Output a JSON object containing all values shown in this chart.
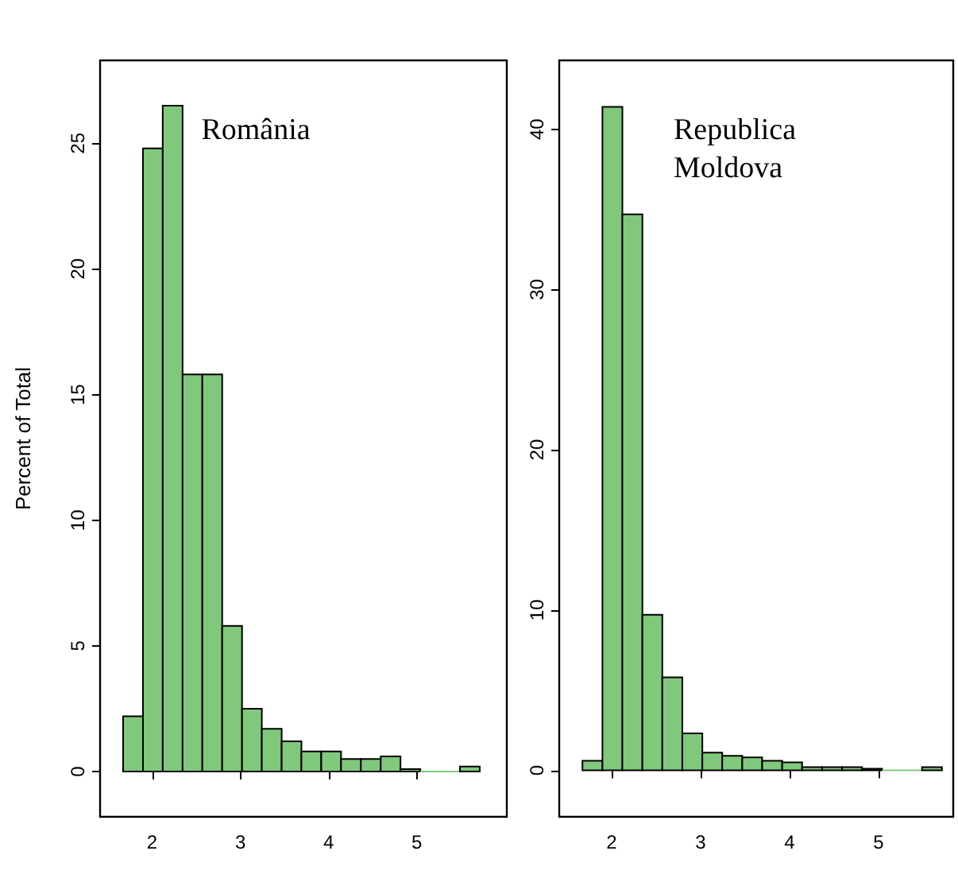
{
  "chart_data": [
    {
      "type": "histogram",
      "ylabel": "Percent of Total",
      "annotations": [
        "România"
      ],
      "color": "#80c97c",
      "bins": [
        1.671,
        1.896,
        2.12,
        2.345,
        2.569,
        2.794,
        3.019,
        3.243,
        3.468,
        3.692,
        3.917,
        4.141,
        4.366,
        4.591,
        4.815,
        5.04,
        5.264,
        5.489,
        5.713
      ],
      "values": [
        2.2,
        24.8,
        26.5,
        15.8,
        15.8,
        5.8,
        2.5,
        1.7,
        1.2,
        0.8,
        0.8,
        0.5,
        0.5,
        0.6,
        0.1,
        0,
        0,
        0.2
      ],
      "xlim": [
        1.41,
        6.02
      ],
      "xticks": [
        2,
        3,
        4,
        5
      ],
      "ylim": [
        -1.8,
        28.3
      ],
      "yticks": [
        0,
        5,
        10,
        15,
        20,
        25
      ]
    },
    {
      "type": "histogram",
      "annotations": [
        "Republica\nMoldova"
      ],
      "color": "#80c97c",
      "bins": [
        1.671,
        1.896,
        2.12,
        2.345,
        2.569,
        2.794,
        3.019,
        3.243,
        3.468,
        3.692,
        3.917,
        4.141,
        4.366,
        4.591,
        4.815,
        5.04,
        5.264,
        5.489,
        5.713
      ],
      "values": [
        0.6,
        41.4,
        34.7,
        9.7,
        5.8,
        2.3,
        1.1,
        0.9,
        0.8,
        0.6,
        0.5,
        0.2,
        0.2,
        0.2,
        0.1,
        0,
        0,
        0.2
      ],
      "xlim": [
        1.41,
        5.84
      ],
      "xticks": [
        2,
        3,
        4,
        5
      ],
      "ylim": [
        -2.9,
        44.3
      ],
      "yticks": [
        0,
        10,
        20,
        30,
        40
      ]
    }
  ]
}
